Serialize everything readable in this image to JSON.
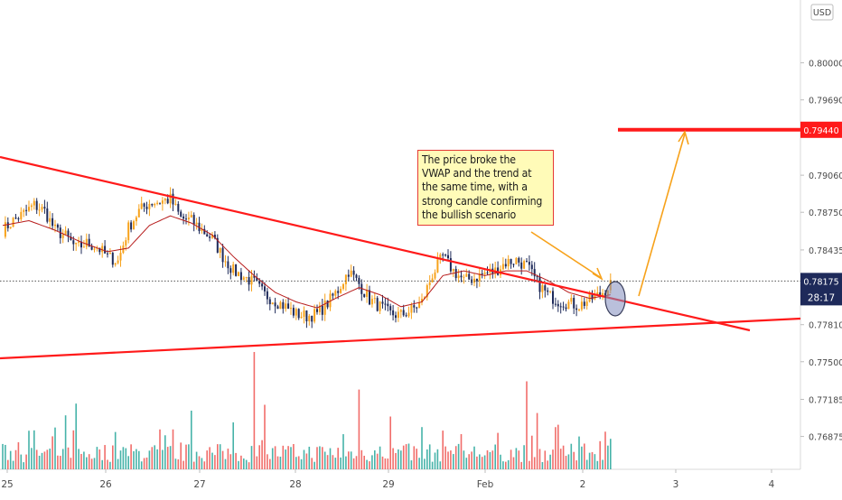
{
  "chart_data": {
    "type": "candlestick",
    "currency_label": "USD",
    "x_tick_labels": [
      "25",
      "26",
      "27",
      "28",
      "29",
      "Feb",
      "2",
      "3",
      "4"
    ],
    "y_tick_labels": [
      "0.80000",
      "0.79690",
      "0.79060",
      "0.78750",
      "0.78435",
      "0.77810",
      "0.77500",
      "0.77185",
      "0.76875"
    ],
    "ylim": [
      0.766,
      0.8045
    ],
    "current_price": "0.78175",
    "countdown": "28:17",
    "target_price": "0.79440",
    "annotation_lines": [
      "The price broke the",
      "VWAP and the trend at",
      "the same time, with a",
      "strong candle confirming",
      "the bullish scenario"
    ],
    "price_path": [
      [
        0,
        0.786
      ],
      [
        4,
        0.7868
      ],
      [
        8,
        0.7874
      ],
      [
        12,
        0.7881
      ],
      [
        16,
        0.7876
      ],
      [
        20,
        0.786
      ],
      [
        24,
        0.7855
      ],
      [
        28,
        0.7845
      ],
      [
        32,
        0.7849
      ],
      [
        36,
        0.7846
      ],
      [
        40,
        0.7838
      ],
      [
        44,
        0.7834
      ],
      [
        48,
        0.7862
      ],
      [
        52,
        0.7876
      ],
      [
        56,
        0.7883
      ],
      [
        60,
        0.7884
      ],
      [
        64,
        0.7886
      ],
      [
        68,
        0.787
      ],
      [
        72,
        0.7868
      ],
      [
        76,
        0.786
      ],
      [
        80,
        0.7853
      ],
      [
        84,
        0.7838
      ],
      [
        88,
        0.7826
      ],
      [
        92,
        0.7821
      ],
      [
        96,
        0.7816
      ],
      [
        100,
        0.7806
      ],
      [
        104,
        0.7801
      ],
      [
        108,
        0.7796
      ],
      [
        112,
        0.779
      ],
      [
        116,
        0.7788
      ],
      [
        120,
        0.779
      ],
      [
        124,
        0.7799
      ],
      [
        128,
        0.781
      ],
      [
        132,
        0.7826
      ],
      [
        136,
        0.7815
      ],
      [
        140,
        0.7802
      ],
      [
        144,
        0.7796
      ],
      [
        148,
        0.779
      ],
      [
        152,
        0.7789
      ],
      [
        156,
        0.7793
      ],
      [
        160,
        0.78
      ],
      [
        164,
        0.7823
      ],
      [
        168,
        0.7838
      ],
      [
        172,
        0.7826
      ],
      [
        176,
        0.7818
      ],
      [
        180,
        0.782
      ],
      [
        184,
        0.7824
      ],
      [
        188,
        0.7826
      ],
      [
        192,
        0.7833
      ],
      [
        196,
        0.7835
      ],
      [
        200,
        0.783
      ],
      [
        204,
        0.7816
      ],
      [
        208,
        0.7806
      ],
      [
        212,
        0.7801
      ],
      [
        216,
        0.7799
      ],
      [
        220,
        0.7797
      ],
      [
        224,
        0.7802
      ],
      [
        228,
        0.7806
      ],
      [
        232,
        0.7815
      ]
    ],
    "vwap_path": [
      [
        0,
        0.7864
      ],
      [
        10,
        0.7868
      ],
      [
        20,
        0.786
      ],
      [
        30,
        0.785
      ],
      [
        40,
        0.7842
      ],
      [
        48,
        0.7845
      ],
      [
        56,
        0.7864
      ],
      [
        64,
        0.7872
      ],
      [
        72,
        0.7866
      ],
      [
        80,
        0.7856
      ],
      [
        88,
        0.7838
      ],
      [
        96,
        0.7822
      ],
      [
        104,
        0.7808
      ],
      [
        112,
        0.78
      ],
      [
        120,
        0.7795
      ],
      [
        128,
        0.7804
      ],
      [
        136,
        0.7812
      ],
      [
        144,
        0.7806
      ],
      [
        152,
        0.7796
      ],
      [
        160,
        0.78
      ],
      [
        168,
        0.7822
      ],
      [
        176,
        0.7826
      ],
      [
        184,
        0.7822
      ],
      [
        192,
        0.7826
      ],
      [
        200,
        0.7826
      ],
      [
        208,
        0.7818
      ],
      [
        216,
        0.7808
      ],
      [
        224,
        0.7803
      ],
      [
        232,
        0.7806
      ]
    ],
    "colors": {
      "up": "#f7a21b",
      "down": "#1e2a5a",
      "vwap": "#b71c1c",
      "trendline": "#ff1a1a",
      "arrow": "#f7a21b",
      "volume_up": "#26a69a",
      "volume_down": "#ef5350",
      "axis_text": "#4a4a4a"
    }
  }
}
